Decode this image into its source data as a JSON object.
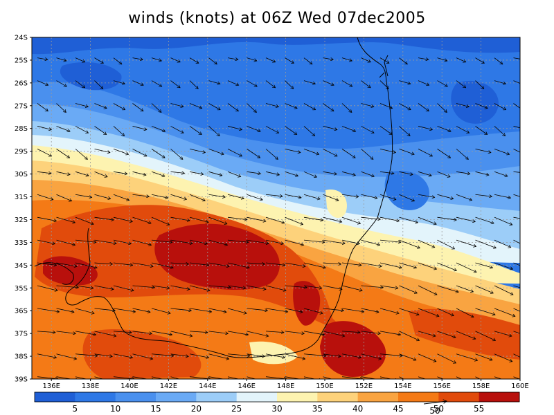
{
  "title": "winds (knots) at 06Z Wed 07dec2005",
  "lat_labels": [
    "24S",
    "25S",
    "26S",
    "27S",
    "28S",
    "29S",
    "30S",
    "31S",
    "32S",
    "33S",
    "34S",
    "35S",
    "36S",
    "37S",
    "38S",
    "39S"
  ],
  "lon_labels": [
    "136E",
    "138E",
    "140E",
    "142E",
    "144E",
    "146E",
    "148E",
    "150E",
    "152E",
    "154E",
    "156E",
    "158E",
    "160E"
  ],
  "colorbar": {
    "colors": [
      "#1f5fd6",
      "#2e78e6",
      "#4a90ee",
      "#6aaaf5",
      "#9ccdf8",
      "#e3f4fb",
      "#fdf3b0",
      "#fdd27b",
      "#f9a441",
      "#f47a16",
      "#e14b0c",
      "#b8100c"
    ],
    "labels": [
      "5",
      "10",
      "15",
      "20",
      "25",
      "30",
      "35",
      "40",
      "45",
      "50",
      "55"
    ]
  },
  "reference_vector": {
    "label": "50"
  },
  "map": {
    "lon_min": 135,
    "lon_max": 160,
    "lat_top": -24,
    "lat_bottom": -39
  }
}
